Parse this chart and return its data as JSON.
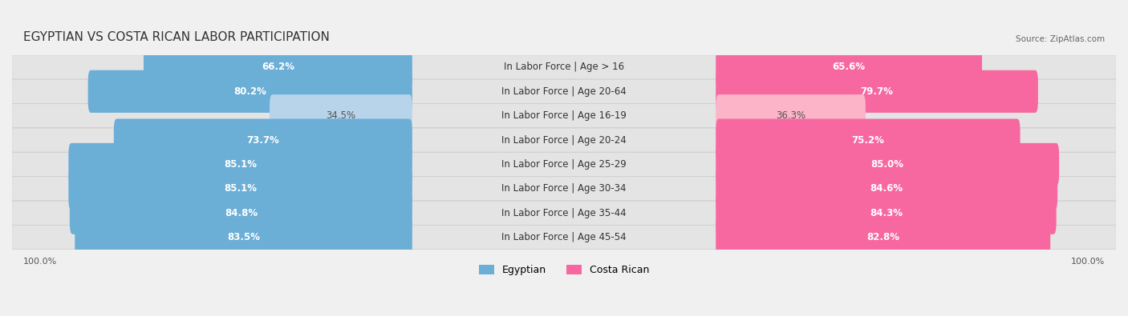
{
  "title": "EGYPTIAN VS COSTA RICAN LABOR PARTICIPATION",
  "source": "Source: ZipAtlas.com",
  "categories": [
    "In Labor Force | Age > 16",
    "In Labor Force | Age 20-64",
    "In Labor Force | Age 16-19",
    "In Labor Force | Age 20-24",
    "In Labor Force | Age 25-29",
    "In Labor Force | Age 30-34",
    "In Labor Force | Age 35-44",
    "In Labor Force | Age 45-54"
  ],
  "egyptian_values": [
    66.2,
    80.2,
    34.5,
    73.7,
    85.1,
    85.1,
    84.8,
    83.5
  ],
  "costa_rican_values": [
    65.6,
    79.7,
    36.3,
    75.2,
    85.0,
    84.6,
    84.3,
    82.8
  ],
  "egyptian_color": "#6baed6",
  "costa_rican_color": "#f768a1",
  "egyptian_color_light": "#b8d4ea",
  "costa_rican_color_light": "#fbb4c8",
  "background_color": "#f0f0f0",
  "row_bg_color": "#e8e8e8",
  "bar_bg_color": "#ffffff",
  "label_fontsize": 9,
  "title_fontsize": 11,
  "value_fontsize": 8.5,
  "legend_fontsize": 9,
  "max_value": 100.0
}
